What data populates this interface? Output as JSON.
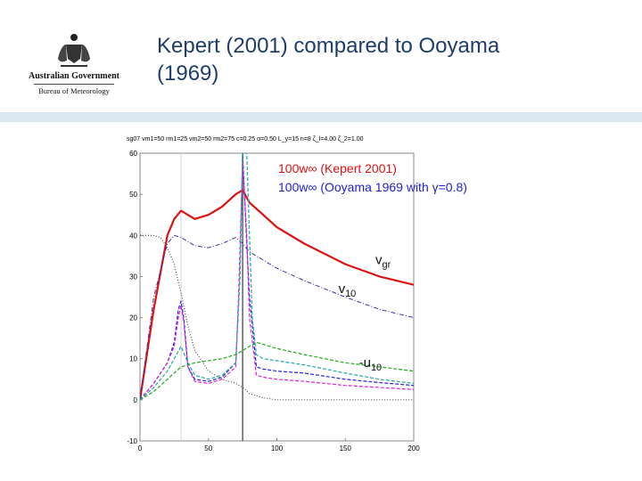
{
  "header": {
    "logo_line1": "Australian Government",
    "logo_line2": "Bureau of Meteorology",
    "title": "Kepert (2001) compared to Ooyama (1969)"
  },
  "colors": {
    "title": "#1e3d6b",
    "band": "#dae6f0",
    "kepert": "#dd1111",
    "ooyama": "#2222cc"
  },
  "chart_data": {
    "type": "line",
    "title": "sg07 vm1=50 rm1=25 vm2=50 rm2=75 c=0.25 α=0.50 L_y=15 n=8 ζ_l=4.00 ζ_2=1.00",
    "xlim": [
      0,
      200
    ],
    "ylim": [
      -10,
      60
    ],
    "xticks": [
      0,
      50,
      100,
      150,
      200
    ],
    "yticks": [
      -10,
      0,
      10,
      20,
      30,
      40,
      50,
      60
    ],
    "grid": false,
    "vertical_lines": [
      30,
      75
    ],
    "legend": [
      "100w∞ (Kepert 2001)",
      "100w∞ (Ooyama 1969 with γ=0.8)"
    ],
    "legend_position": "top-right",
    "annotations": [
      {
        "text": "v",
        "sub": "gr",
        "x": 172,
        "y": 33
      },
      {
        "text": "v",
        "sub": "10",
        "x": 145,
        "y": 26
      },
      {
        "text": "-u",
        "sub": "10",
        "x": 160,
        "y": 8
      }
    ],
    "series": [
      {
        "color": "#dd1111",
        "style": "solid",
        "width": 2.2,
        "x": [
          0,
          10,
          20,
          25,
          30,
          35,
          40,
          50,
          60,
          70,
          75,
          80,
          90,
          100,
          120,
          150,
          175,
          200
        ],
        "y": [
          0,
          22,
          40,
          44,
          46,
          45,
          44,
          45,
          47,
          50,
          51,
          48,
          45,
          42,
          38,
          33,
          30,
          28
        ]
      },
      {
        "color": "#3333aa",
        "style": "dashdot",
        "width": 1,
        "x": [
          0,
          10,
          20,
          25,
          30,
          35,
          40,
          50,
          60,
          70,
          75,
          80,
          90,
          100,
          120,
          150,
          175,
          200
        ],
        "y": [
          0,
          25,
          38,
          40,
          39.5,
          38.5,
          37.5,
          37,
          38,
          39.5,
          38,
          36,
          34,
          32,
          29,
          25,
          22,
          20
        ]
      },
      {
        "color": "#333333",
        "style": "dotted",
        "width": 1,
        "x": [
          0,
          10,
          15,
          20,
          25,
          30,
          35,
          40,
          50,
          60,
          70,
          75,
          80,
          90,
          100,
          200
        ],
        "y": [
          40,
          40,
          39.5,
          37,
          33,
          26,
          18,
          12,
          7,
          5,
          4,
          3,
          1.5,
          0.5,
          0,
          0
        ]
      },
      {
        "color": "#2222dd",
        "style": "dashed",
        "width": 1.2,
        "x": [
          0,
          10,
          20,
          25,
          28,
          30,
          32,
          35,
          40,
          50,
          60,
          70,
          73,
          75,
          77,
          80,
          85,
          90,
          100,
          120,
          150,
          175,
          200
        ],
        "y": [
          0,
          4,
          9,
          14,
          22,
          24,
          20,
          8,
          5,
          4.5,
          5.5,
          9,
          30,
          60,
          45,
          25,
          8,
          7.5,
          7,
          6.5,
          5,
          4.2,
          3.5
        ]
      },
      {
        "color": "#dd22dd",
        "style": "dashed",
        "width": 1.2,
        "x": [
          0,
          10,
          20,
          25,
          28,
          30,
          32,
          35,
          40,
          50,
          60,
          70,
          72,
          75,
          78,
          80,
          85,
          90,
          100,
          120,
          150,
          175,
          200
        ],
        "y": [
          0,
          4,
          9,
          13,
          20,
          23,
          19,
          8,
          4.5,
          4,
          5,
          8,
          25,
          58,
          40,
          20,
          6,
          5.5,
          5,
          4.5,
          3.5,
          3,
          2.5
        ]
      },
      {
        "color": "#22aaaa",
        "style": "dashed",
        "width": 1.2,
        "x": [
          0,
          10,
          20,
          25,
          30,
          35,
          40,
          50,
          60,
          70,
          73,
          75,
          78,
          80,
          82,
          85,
          90,
          100,
          120,
          150,
          175,
          200
        ],
        "y": [
          0,
          3,
          7,
          10,
          13,
          9,
          6,
          5,
          6,
          9,
          30,
          60,
          60,
          40,
          20,
          11,
          10,
          9.5,
          8.5,
          6.5,
          5,
          4
        ]
      },
      {
        "color": "#22aa22",
        "style": "dashed",
        "width": 1.2,
        "x": [
          0,
          10,
          20,
          30,
          40,
          50,
          60,
          70,
          75,
          80,
          85,
          90,
          100,
          120,
          150,
          175,
          200
        ],
        "y": [
          0,
          2,
          5,
          8,
          9,
          9.5,
          10,
          11,
          12,
          13,
          14,
          13.5,
          12.5,
          11,
          9,
          8,
          7
        ]
      }
    ]
  }
}
